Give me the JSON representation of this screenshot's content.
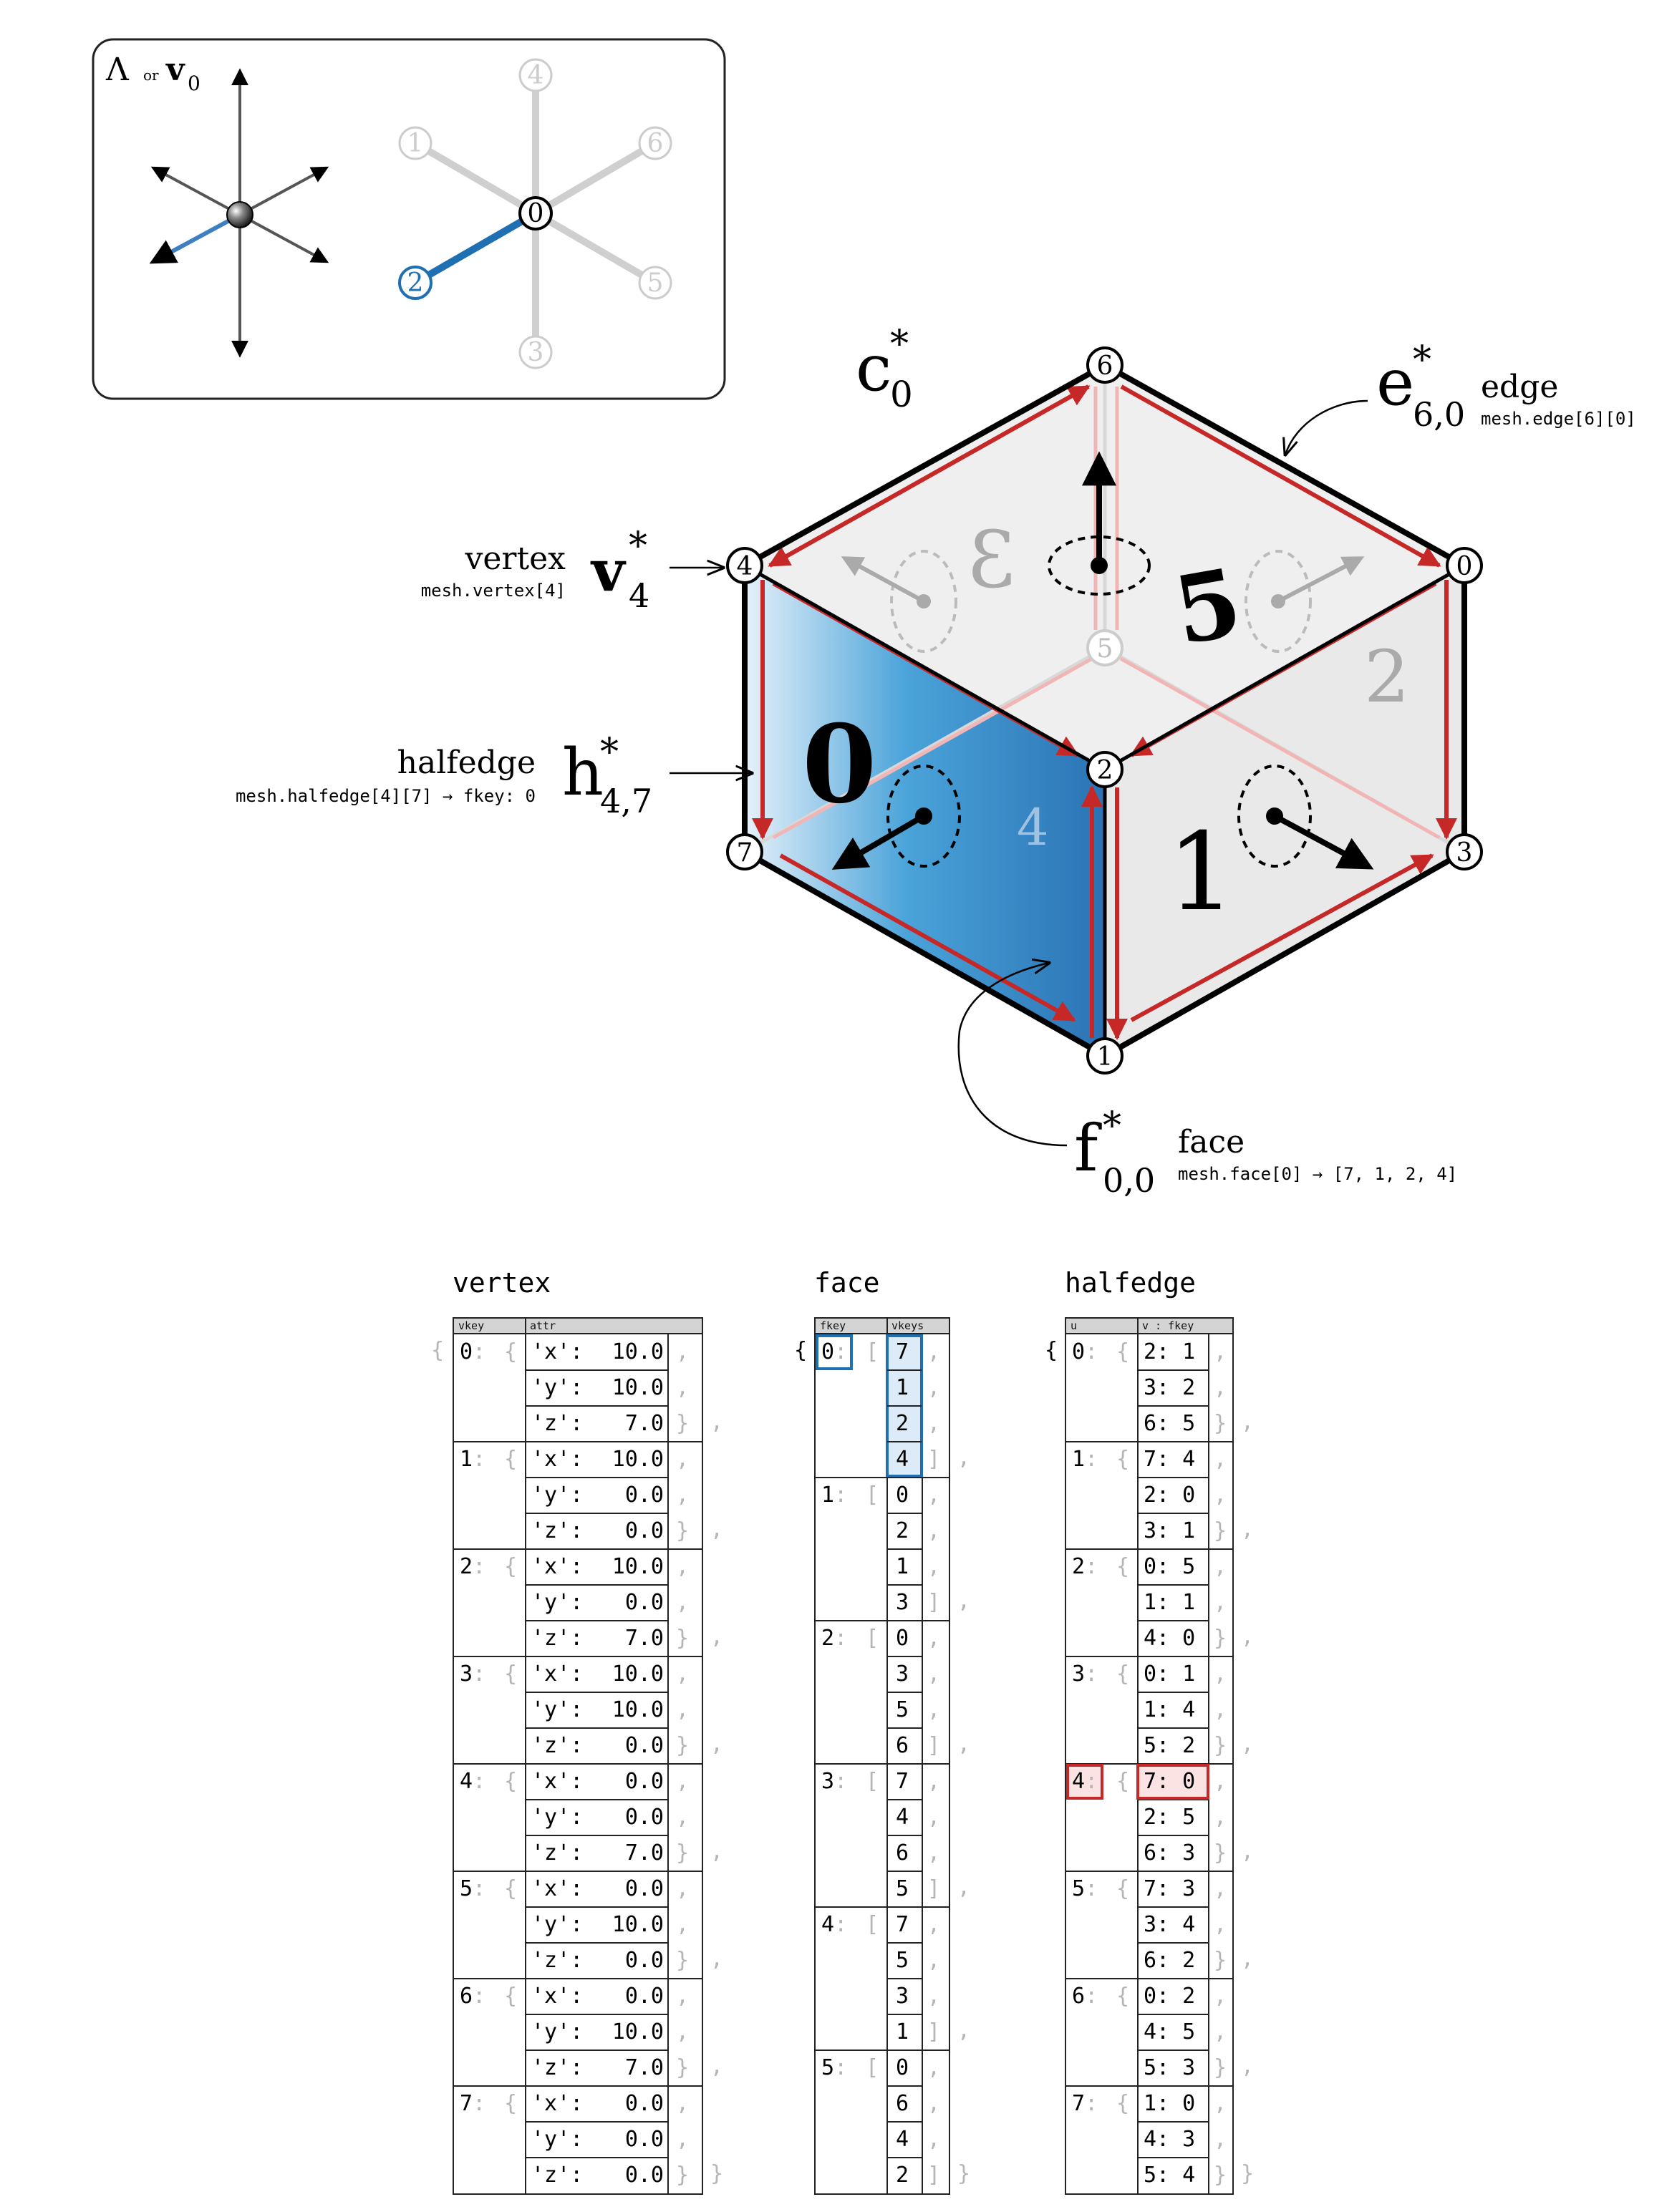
{
  "legend_box": {
    "title_lambda": "Λ",
    "title_or": "or",
    "title_v": "v",
    "title_sub": "0",
    "labels": [
      "4",
      "1",
      "6",
      "0",
      "2",
      "5",
      "3"
    ]
  },
  "annotations": {
    "cell": {
      "main": "c",
      "sup": "*",
      "sub": "0"
    },
    "edge": {
      "main": "e",
      "sup": "*",
      "sub": "6,0",
      "word": "edge",
      "code": "mesh.edge[6][0]"
    },
    "vertex": {
      "word": "vertex",
      "code": "mesh.vertex[4]",
      "main": "v",
      "sup": "*",
      "sub": "4"
    },
    "halfedge": {
      "word": "halfedge",
      "code": "mesh.halfedge[4][7] → fkey: 0",
      "main": "h",
      "sup": "*",
      "sub": "4,7"
    },
    "face": {
      "main": "f",
      "sup": "*",
      "sub": "0,0",
      "word": "face",
      "code": "mesh.face[0] → [7, 1, 2, 4]"
    }
  },
  "cube": {
    "vertex_labels": [
      "6",
      "4",
      "0",
      "5",
      "2",
      "7",
      "3",
      "1"
    ],
    "face_labels": [
      "5",
      "3",
      "0",
      "1",
      "4",
      "2"
    ]
  },
  "tables": {
    "vertex": {
      "title": "vertex",
      "headers": [
        "vkey",
        "attr"
      ],
      "rows": [
        {
          "key": "0",
          "attrs": [
            [
              "'x':",
              "10.0"
            ],
            [
              "'y':",
              "10.0"
            ],
            [
              "'z':",
              "7.0"
            ]
          ]
        },
        {
          "key": "1",
          "attrs": [
            [
              "'x':",
              "10.0"
            ],
            [
              "'y':",
              "0.0"
            ],
            [
              "'z':",
              "0.0"
            ]
          ]
        },
        {
          "key": "2",
          "attrs": [
            [
              "'x':",
              "10.0"
            ],
            [
              "'y':",
              "0.0"
            ],
            [
              "'z':",
              "7.0"
            ]
          ]
        },
        {
          "key": "3",
          "attrs": [
            [
              "'x':",
              "10.0"
            ],
            [
              "'y':",
              "10.0"
            ],
            [
              "'z':",
              "0.0"
            ]
          ]
        },
        {
          "key": "4",
          "attrs": [
            [
              "'x':",
              "0.0"
            ],
            [
              "'y':",
              "0.0"
            ],
            [
              "'z':",
              "7.0"
            ]
          ]
        },
        {
          "key": "5",
          "attrs": [
            [
              "'x':",
              "0.0"
            ],
            [
              "'y':",
              "10.0"
            ],
            [
              "'z':",
              "0.0"
            ]
          ]
        },
        {
          "key": "6",
          "attrs": [
            [
              "'x':",
              "0.0"
            ],
            [
              "'y':",
              "10.0"
            ],
            [
              "'z':",
              "7.0"
            ]
          ]
        },
        {
          "key": "7",
          "attrs": [
            [
              "'x':",
              "0.0"
            ],
            [
              "'y':",
              "0.0"
            ],
            [
              "'z':",
              "0.0"
            ]
          ]
        }
      ]
    },
    "face": {
      "title": "face",
      "headers": [
        "fkey",
        "vkeys"
      ],
      "rows": [
        {
          "key": "0",
          "vkeys": [
            "7",
            "1",
            "2",
            "4"
          ]
        },
        {
          "key": "1",
          "vkeys": [
            "0",
            "2",
            "1",
            "3"
          ]
        },
        {
          "key": "2",
          "vkeys": [
            "0",
            "3",
            "5",
            "6"
          ]
        },
        {
          "key": "3",
          "vkeys": [
            "7",
            "4",
            "6",
            "5"
          ]
        },
        {
          "key": "4",
          "vkeys": [
            "7",
            "5",
            "3",
            "1"
          ]
        },
        {
          "key": "5",
          "vkeys": [
            "0",
            "6",
            "4",
            "2"
          ]
        }
      ]
    },
    "halfedge": {
      "title": "halfedge",
      "headers": [
        "u",
        "v :  fkey"
      ],
      "rows": [
        {
          "key": "0",
          "pairs": [
            "2: 1",
            "3: 2",
            "6: 5"
          ]
        },
        {
          "key": "1",
          "pairs": [
            "7: 4",
            "2: 0",
            "3: 1"
          ]
        },
        {
          "key": "2",
          "pairs": [
            "0: 5",
            "1: 1",
            "4: 0"
          ]
        },
        {
          "key": "3",
          "pairs": [
            "0: 1",
            "1: 4",
            "5: 2"
          ]
        },
        {
          "key": "4",
          "pairs": [
            "7: 0",
            "2: 5",
            "6: 3"
          ]
        },
        {
          "key": "5",
          "pairs": [
            "7: 3",
            "3: 4",
            "6: 2"
          ]
        },
        {
          "key": "6",
          "pairs": [
            "0: 2",
            "4: 5",
            "5: 3"
          ]
        },
        {
          "key": "7",
          "pairs": [
            "1: 0",
            "4: 3",
            "5: 4"
          ]
        }
      ]
    }
  },
  "colors": {
    "blue": "#1f6fb3",
    "red": "#c62828",
    "gray": "#c8c8c8"
  }
}
